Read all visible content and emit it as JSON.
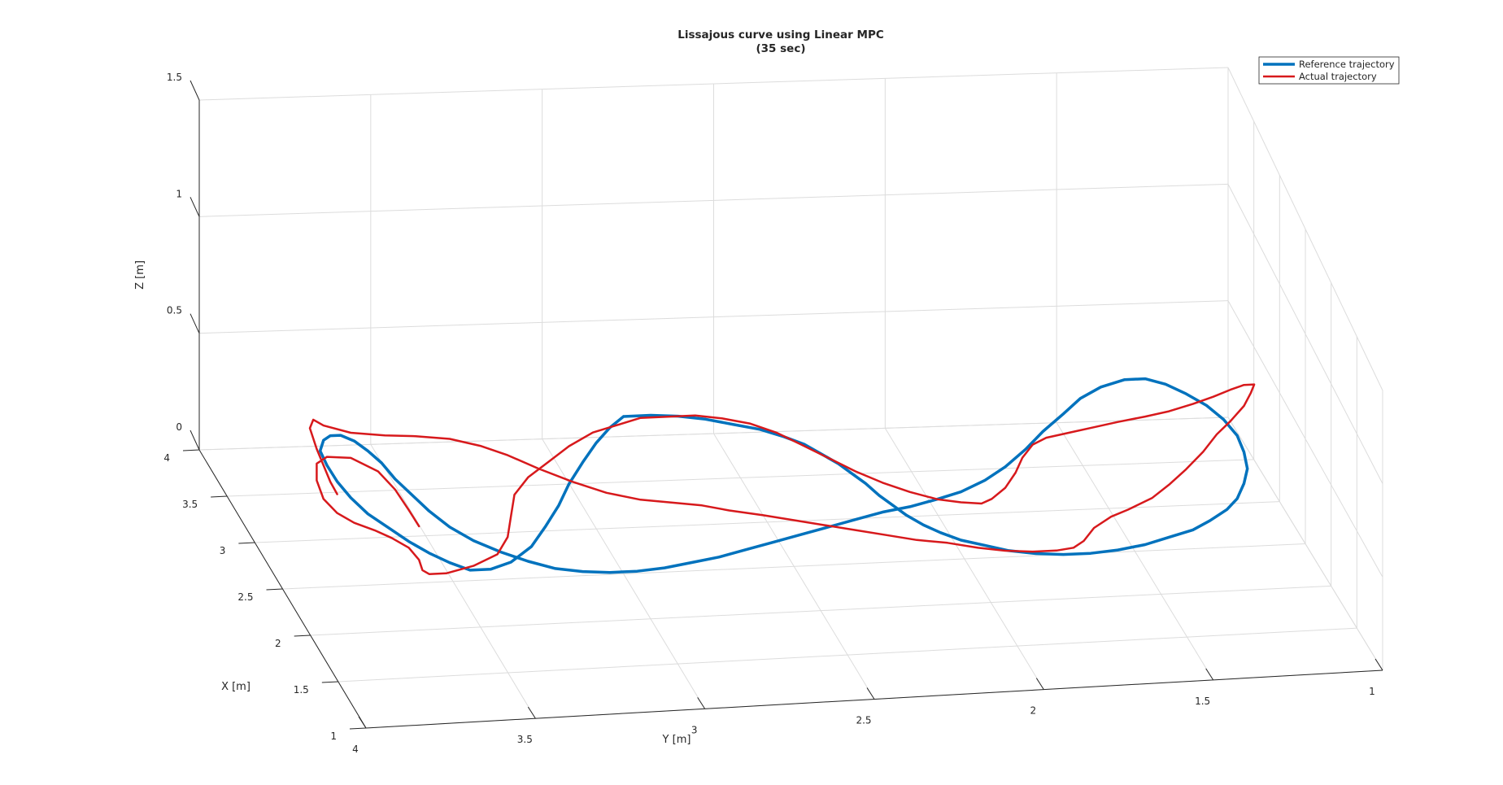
{
  "chart_data": {
    "type": "line",
    "title": "Lissajous curve using Linear MPC",
    "subtitle": "(35 sec)",
    "xlabel": "X [m]",
    "ylabel": "Y [m]",
    "zlabel": "Z [m]",
    "xlim": [
      1,
      4
    ],
    "ylim": [
      1,
      4
    ],
    "zlim": [
      0,
      1.5
    ],
    "x_ticks": [
      "1",
      "1.5",
      "2",
      "2.5",
      "3",
      "3.5",
      "4"
    ],
    "y_ticks": [
      "4",
      "3.5",
      "3",
      "2.5",
      "2",
      "1.5",
      "1"
    ],
    "z_ticks": [
      "0",
      "0.5",
      "1",
      "1.5"
    ],
    "grid": true,
    "legend_placement": "top-right",
    "series": [
      {
        "name": "Reference trajectory",
        "color": "#0072BD",
        "points_xyz": [
          [
            2.5,
            3.0,
            0.75
          ],
          [
            2.5,
            2.92,
            0.75
          ],
          [
            2.5,
            2.84,
            0.74
          ],
          [
            2.5,
            2.76,
            0.72
          ],
          [
            2.5,
            2.68,
            0.69
          ],
          [
            2.5,
            2.6,
            0.66
          ],
          [
            2.5,
            2.53,
            0.62
          ],
          [
            2.5,
            2.47,
            0.58
          ],
          [
            2.5,
            2.42,
            0.53
          ],
          [
            2.5,
            2.37,
            0.48
          ],
          [
            2.5,
            2.33,
            0.43
          ],
          [
            2.5,
            2.29,
            0.38
          ],
          [
            2.5,
            2.25,
            0.32
          ],
          [
            2.5,
            2.21,
            0.27
          ],
          [
            2.5,
            2.17,
            0.22
          ],
          [
            2.5,
            2.12,
            0.17
          ],
          [
            2.5,
            2.07,
            0.13
          ],
          [
            2.5,
            2.01,
            0.09
          ],
          [
            2.5,
            1.94,
            0.06
          ],
          [
            2.5,
            1.87,
            0.03
          ],
          [
            2.5,
            1.79,
            0.01
          ],
          [
            2.5,
            1.71,
            0.0
          ],
          [
            2.5,
            1.63,
            0.0
          ],
          [
            2.5,
            1.55,
            0.01
          ],
          [
            2.5,
            1.47,
            0.03
          ],
          [
            2.5,
            1.4,
            0.06
          ],
          [
            2.5,
            1.33,
            0.09
          ],
          [
            2.5,
            1.28,
            0.13
          ],
          [
            2.5,
            1.23,
            0.18
          ],
          [
            2.5,
            1.2,
            0.23
          ],
          [
            2.5,
            1.18,
            0.3
          ],
          [
            2.5,
            1.17,
            0.37
          ],
          [
            2.5,
            1.18,
            0.45
          ],
          [
            2.5,
            1.2,
            0.53
          ],
          [
            2.5,
            1.24,
            0.61
          ],
          [
            2.5,
            1.29,
            0.68
          ],
          [
            2.5,
            1.35,
            0.74
          ],
          [
            2.5,
            1.41,
            0.79
          ],
          [
            2.5,
            1.47,
            0.82
          ],
          [
            2.5,
            1.53,
            0.82
          ],
          [
            2.5,
            1.6,
            0.79
          ],
          [
            2.5,
            1.66,
            0.74
          ],
          [
            2.5,
            1.71,
            0.67
          ],
          [
            2.5,
            1.77,
            0.59
          ],
          [
            2.5,
            1.82,
            0.51
          ],
          [
            2.5,
            1.88,
            0.43
          ],
          [
            2.5,
            1.94,
            0.37
          ],
          [
            2.5,
            2.01,
            0.32
          ],
          [
            2.5,
            2.08,
            0.29
          ],
          [
            2.5,
            2.16,
            0.26
          ],
          [
            2.5,
            2.24,
            0.24
          ],
          [
            2.5,
            2.32,
            0.21
          ],
          [
            2.5,
            2.4,
            0.18
          ],
          [
            2.5,
            2.48,
            0.15
          ],
          [
            2.5,
            2.56,
            0.12
          ],
          [
            2.5,
            2.64,
            0.09
          ],
          [
            2.5,
            2.72,
            0.06
          ],
          [
            2.5,
            2.8,
            0.04
          ],
          [
            2.5,
            2.88,
            0.02
          ],
          [
            2.5,
            2.96,
            0.01
          ],
          [
            2.5,
            3.04,
            0.01
          ],
          [
            2.5,
            3.12,
            0.02
          ],
          [
            2.5,
            3.2,
            0.04
          ],
          [
            2.5,
            3.28,
            0.08
          ],
          [
            2.5,
            3.36,
            0.13
          ],
          [
            2.5,
            3.44,
            0.19
          ],
          [
            2.5,
            3.51,
            0.26
          ],
          [
            2.5,
            3.57,
            0.34
          ],
          [
            2.5,
            3.62,
            0.42
          ],
          [
            2.5,
            3.67,
            0.5
          ],
          [
            2.5,
            3.71,
            0.58
          ],
          [
            2.5,
            3.75,
            0.64
          ],
          [
            2.5,
            3.79,
            0.69
          ],
          [
            2.5,
            3.83,
            0.72
          ],
          [
            2.5,
            3.86,
            0.72
          ],
          [
            2.5,
            3.88,
            0.7
          ],
          [
            2.5,
            3.89,
            0.65
          ],
          [
            2.5,
            3.87,
            0.58
          ],
          [
            2.5,
            3.84,
            0.5
          ],
          [
            2.5,
            3.8,
            0.42
          ],
          [
            2.5,
            3.75,
            0.34
          ],
          [
            2.5,
            3.69,
            0.27
          ],
          [
            2.5,
            3.63,
            0.2
          ],
          [
            2.5,
            3.57,
            0.14
          ],
          [
            2.5,
            3.51,
            0.09
          ],
          [
            2.5,
            3.45,
            0.05
          ],
          [
            2.5,
            3.39,
            0.05
          ],
          [
            2.5,
            3.33,
            0.08
          ],
          [
            2.5,
            3.27,
            0.15
          ],
          [
            2.5,
            3.23,
            0.24
          ],
          [
            2.5,
            3.19,
            0.34
          ],
          [
            2.5,
            3.16,
            0.44
          ],
          [
            2.5,
            3.12,
            0.54
          ],
          [
            2.5,
            3.08,
            0.63
          ],
          [
            2.5,
            3.04,
            0.7
          ],
          [
            2.5,
            3.0,
            0.75
          ]
        ]
      },
      {
        "name": "Actual trajectory",
        "color": "#D7191C",
        "points_xyz": [
          [
            2.5,
            3.6,
            0.27
          ],
          [
            2.5,
            3.63,
            0.35
          ],
          [
            2.5,
            3.67,
            0.45
          ],
          [
            2.5,
            3.72,
            0.54
          ],
          [
            2.5,
            3.8,
            0.61
          ],
          [
            2.5,
            3.87,
            0.62
          ],
          [
            2.5,
            3.9,
            0.59
          ],
          [
            2.5,
            3.9,
            0.51
          ],
          [
            2.5,
            3.88,
            0.42
          ],
          [
            2.5,
            3.84,
            0.35
          ],
          [
            2.5,
            3.79,
            0.3
          ],
          [
            2.5,
            3.73,
            0.26
          ],
          [
            2.5,
            3.68,
            0.22
          ],
          [
            2.5,
            3.63,
            0.17
          ],
          [
            2.5,
            3.6,
            0.11
          ],
          [
            2.5,
            3.59,
            0.06
          ],
          [
            2.5,
            3.57,
            0.04
          ],
          [
            2.5,
            3.52,
            0.04
          ],
          [
            2.5,
            3.44,
            0.07
          ],
          [
            2.5,
            3.37,
            0.12
          ],
          [
            2.5,
            3.34,
            0.2
          ],
          [
            2.5,
            3.33,
            0.3
          ],
          [
            2.5,
            3.32,
            0.4
          ],
          [
            2.5,
            3.28,
            0.48
          ],
          [
            2.5,
            3.22,
            0.55
          ],
          [
            2.5,
            3.16,
            0.62
          ],
          [
            2.5,
            3.09,
            0.68
          ],
          [
            2.5,
            3.02,
            0.71
          ],
          [
            2.5,
            2.95,
            0.74
          ],
          [
            2.5,
            2.87,
            0.74
          ],
          [
            2.5,
            2.79,
            0.74
          ],
          [
            2.5,
            2.71,
            0.72
          ],
          [
            2.5,
            2.63,
            0.69
          ],
          [
            2.5,
            2.55,
            0.64
          ],
          [
            2.5,
            2.48,
            0.58
          ],
          [
            2.5,
            2.4,
            0.51
          ],
          [
            2.5,
            2.32,
            0.44
          ],
          [
            2.5,
            2.24,
            0.38
          ],
          [
            2.5,
            2.16,
            0.33
          ],
          [
            2.5,
            2.08,
            0.29
          ],
          [
            2.5,
            2.01,
            0.27
          ],
          [
            2.5,
            1.95,
            0.26
          ],
          [
            2.5,
            1.92,
            0.28
          ],
          [
            2.5,
            1.88,
            0.33
          ],
          [
            2.5,
            1.85,
            0.4
          ],
          [
            2.5,
            1.83,
            0.47
          ],
          [
            2.5,
            1.8,
            0.53
          ],
          [
            2.5,
            1.76,
            0.56
          ],
          [
            2.5,
            1.69,
            0.58
          ],
          [
            2.5,
            1.62,
            0.6
          ],
          [
            2.5,
            1.55,
            0.62
          ],
          [
            2.5,
            1.47,
            0.64
          ],
          [
            2.5,
            1.4,
            0.66
          ],
          [
            2.5,
            1.33,
            0.69
          ],
          [
            2.5,
            1.27,
            0.72
          ],
          [
            2.5,
            1.22,
            0.75
          ],
          [
            2.5,
            1.18,
            0.77
          ],
          [
            2.5,
            1.15,
            0.77
          ],
          [
            2.5,
            1.16,
            0.73
          ],
          [
            2.5,
            1.18,
            0.67
          ],
          [
            2.5,
            1.22,
            0.6
          ],
          [
            2.5,
            1.26,
            0.54
          ],
          [
            2.5,
            1.3,
            0.46
          ],
          [
            2.5,
            1.35,
            0.38
          ],
          [
            2.5,
            1.4,
            0.31
          ],
          [
            2.5,
            1.45,
            0.25
          ],
          [
            2.5,
            1.52,
            0.2
          ],
          [
            2.5,
            1.57,
            0.17
          ],
          [
            2.5,
            1.62,
            0.12
          ],
          [
            2.5,
            1.65,
            0.06
          ],
          [
            2.5,
            1.68,
            0.03
          ],
          [
            2.5,
            1.73,
            0.02
          ],
          [
            2.5,
            1.8,
            0.02
          ],
          [
            2.5,
            1.88,
            0.03
          ],
          [
            2.5,
            1.96,
            0.05
          ],
          [
            2.5,
            2.05,
            0.08
          ],
          [
            2.5,
            2.14,
            0.1
          ],
          [
            2.5,
            2.23,
            0.13
          ],
          [
            2.5,
            2.32,
            0.16
          ],
          [
            2.5,
            2.41,
            0.19
          ],
          [
            2.5,
            2.5,
            0.22
          ],
          [
            2.5,
            2.59,
            0.25
          ],
          [
            2.5,
            2.69,
            0.28
          ],
          [
            2.5,
            2.77,
            0.31
          ],
          [
            2.5,
            2.86,
            0.33
          ],
          [
            2.5,
            2.95,
            0.35
          ],
          [
            2.5,
            3.05,
            0.39
          ],
          [
            2.5,
            3.15,
            0.45
          ],
          [
            2.5,
            3.25,
            0.52
          ],
          [
            2.5,
            3.34,
            0.59
          ],
          [
            2.5,
            3.42,
            0.64
          ],
          [
            2.5,
            3.51,
            0.68
          ],
          [
            2.5,
            3.61,
            0.7
          ],
          [
            2.5,
            3.7,
            0.71
          ],
          [
            2.5,
            3.8,
            0.73
          ],
          [
            2.5,
            3.88,
            0.77
          ],
          [
            2.5,
            3.91,
            0.8
          ],
          [
            2.5,
            3.92,
            0.76
          ],
          [
            2.5,
            3.9,
            0.66
          ],
          [
            2.5,
            3.88,
            0.58
          ],
          [
            2.5,
            3.86,
            0.5
          ],
          [
            2.5,
            3.84,
            0.44
          ]
        ]
      }
    ]
  }
}
